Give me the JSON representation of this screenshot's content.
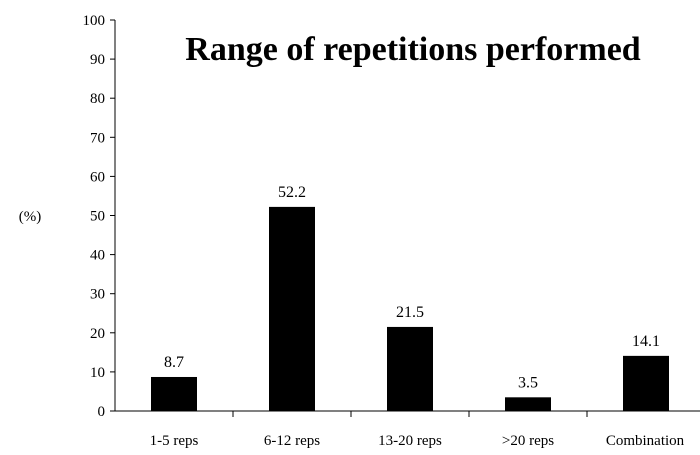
{
  "chart_data": {
    "type": "bar",
    "title": "Range of repetitions performed",
    "ylabel": "(%)",
    "xlabel": "",
    "categories": [
      "1-5 reps",
      "6-12 reps",
      "13-20 reps",
      ">20 reps",
      "Combination"
    ],
    "values": [
      8.7,
      52.2,
      21.5,
      3.5,
      14.1
    ],
    "data_labels": [
      "8.7",
      "52.2",
      "21.5",
      "3.5",
      "14.1"
    ],
    "ylim": [
      0,
      100
    ],
    "yticks": [
      "0",
      "10",
      "20",
      "30",
      "40",
      "50",
      "60",
      "70",
      "80",
      "90",
      "100"
    ],
    "grid": false,
    "legend": "none",
    "bar_color": "#000000"
  }
}
